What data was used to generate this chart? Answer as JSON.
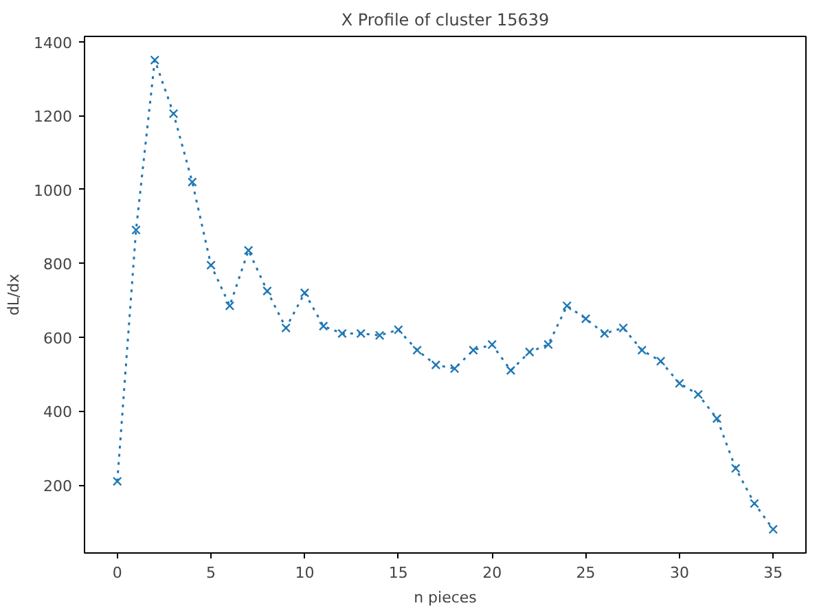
{
  "chart_data": {
    "type": "line",
    "title": "X Profile of cluster 15639",
    "xlabel": "n pieces",
    "ylabel": "dL/dx",
    "x": [
      0,
      1,
      2,
      3,
      4,
      5,
      6,
      7,
      8,
      9,
      10,
      11,
      12,
      13,
      14,
      15,
      16,
      17,
      18,
      19,
      20,
      21,
      22,
      23,
      24,
      25,
      26,
      27,
      28,
      29,
      30,
      31,
      32,
      33,
      34,
      35
    ],
    "series": [
      {
        "color": "#1f77b4",
        "values": [
          210,
          890,
          1350,
          1205,
          1020,
          795,
          685,
          835,
          725,
          625,
          720,
          630,
          610,
          610,
          605,
          620,
          565,
          525,
          515,
          565,
          580,
          510,
          560,
          580,
          685,
          650,
          610,
          625,
          565,
          535,
          475,
          445,
          380,
          245,
          150,
          80
        ]
      }
    ],
    "xlim": [
      -1.75,
      36.75
    ],
    "ylim": [
      16,
      1414
    ],
    "xticks": [
      0,
      5,
      10,
      15,
      20,
      25,
      30,
      35
    ],
    "yticks": [
      200,
      400,
      600,
      800,
      1000,
      1200,
      1400
    ],
    "marker": "cross",
    "line_style": "dotted",
    "grid": false
  }
}
